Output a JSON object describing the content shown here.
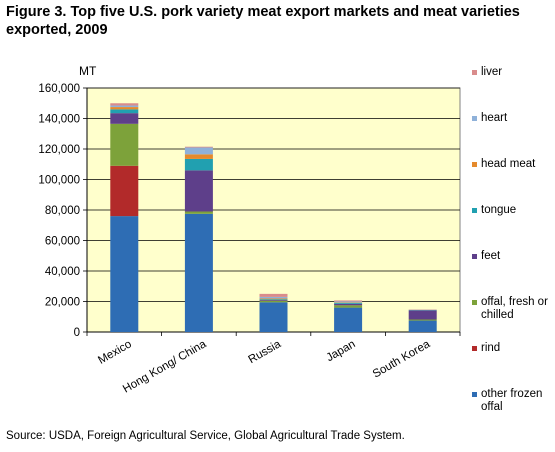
{
  "title": "Figure 3. Top five U.S. pork variety meat export markets and meat varieties exported, 2009",
  "source": "Source: USDA, Foreign Agricultural Service, Global Agricultural Trade System.",
  "colors": {
    "plot_bg": "#FFFFCC",
    "grid": "#000000",
    "other frozen offal": "#2E6DB4",
    "rind": "#B22A2A",
    "offal, fresh or chilled": "#7DA23A",
    "feet": "#5E3F8A",
    "tongue": "#21A0B0",
    "head meat": "#E58A2C",
    "heart": "#8FB1D9",
    "liver": "#D98C8C"
  },
  "chart_data": {
    "type": "bar",
    "stacked": true,
    "ylabel": "MT",
    "ylim": [
      0,
      160000
    ],
    "yticks": [
      "0",
      "20,000",
      "40,000",
      "60,000",
      "80,000",
      "100,000",
      "120,000",
      "140,000",
      "160,000"
    ],
    "ytick_values": [
      0,
      20000,
      40000,
      60000,
      80000,
      100000,
      120000,
      140000,
      160000
    ],
    "grid": true,
    "legend_position": "right",
    "categories": [
      "Mexico",
      "Hong Kong/ China",
      "Russia",
      "Japan",
      "South Korea"
    ],
    "series": [
      {
        "name": "other frozen offal",
        "values": [
          76000,
          77500,
          19500,
          16000,
          7500
        ]
      },
      {
        "name": "rind",
        "values": [
          33000,
          0,
          0,
          0,
          0
        ]
      },
      {
        "name": "offal, fresh or chilled",
        "values": [
          27500,
          1500,
          1000,
          1500,
          700
        ]
      },
      {
        "name": "feet",
        "values": [
          7000,
          27000,
          500,
          1000,
          6000
        ]
      },
      {
        "name": "tongue",
        "values": [
          2500,
          7500,
          500,
          700,
          200
        ]
      },
      {
        "name": "head meat",
        "values": [
          1500,
          3000,
          500,
          300,
          0
        ]
      },
      {
        "name": "heart",
        "values": [
          1000,
          4500,
          1000,
          500,
          200
        ]
      },
      {
        "name": "liver",
        "values": [
          1500,
          500,
          2000,
          700,
          200
        ]
      }
    ]
  }
}
